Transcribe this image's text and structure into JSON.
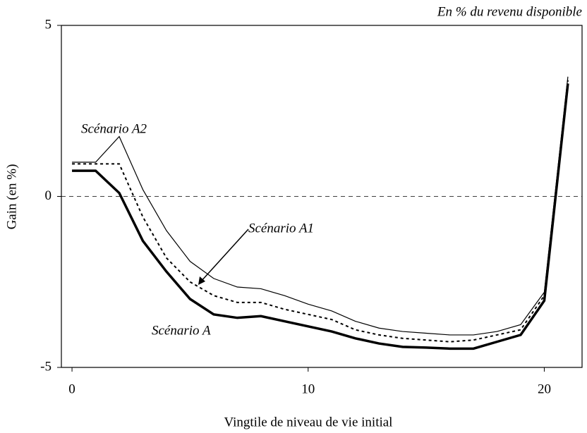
{
  "chart_data": {
    "type": "line",
    "subtitle": "En % du revenu disponible",
    "x_label": "Vingtile de niveau de vie initial",
    "y_label": "Gain (en %)",
    "x": [
      0,
      1,
      2,
      3,
      4,
      5,
      6,
      7,
      8,
      9,
      10,
      11,
      12,
      13,
      14,
      15,
      16,
      17,
      18,
      19,
      20,
      21
    ],
    "series": [
      {
        "name": "Scénario A",
        "color": "#000000",
        "values": [
          0.75,
          0.75,
          0.1,
          -1.3,
          -2.2,
          -3.0,
          -3.45,
          -3.55,
          -3.5,
          -3.65,
          -3.8,
          -3.95,
          -4.15,
          -4.3,
          -4.4,
          -4.42,
          -4.45,
          -4.45,
          -4.25,
          -4.05,
          -3.05,
          3.3
        ]
      },
      {
        "name": "Scénario A1",
        "color": "#000000",
        "values": [
          0.95,
          0.95,
          0.95,
          -0.6,
          -1.8,
          -2.5,
          -2.9,
          -3.1,
          -3.1,
          -3.3,
          -3.45,
          -3.6,
          -3.9,
          -4.05,
          -4.15,
          -4.2,
          -4.25,
          -4.2,
          -4.05,
          -3.9,
          -2.9,
          3.4
        ]
      },
      {
        "name": "Scénario A2",
        "color": "#000000",
        "values": [
          1.0,
          1.0,
          1.75,
          0.2,
          -1.0,
          -1.9,
          -2.4,
          -2.65,
          -2.7,
          -2.9,
          -3.15,
          -3.35,
          -3.65,
          -3.85,
          -3.95,
          -4.0,
          -4.05,
          -4.05,
          -3.95,
          -3.75,
          -2.8,
          3.5
        ]
      }
    ],
    "xlim": [
      -0.45,
      21.6
    ],
    "xticks": [
      0,
      10,
      20
    ],
    "ylim": [
      -5,
      5
    ],
    "yticks": [
      -5,
      0,
      5
    ]
  }
}
